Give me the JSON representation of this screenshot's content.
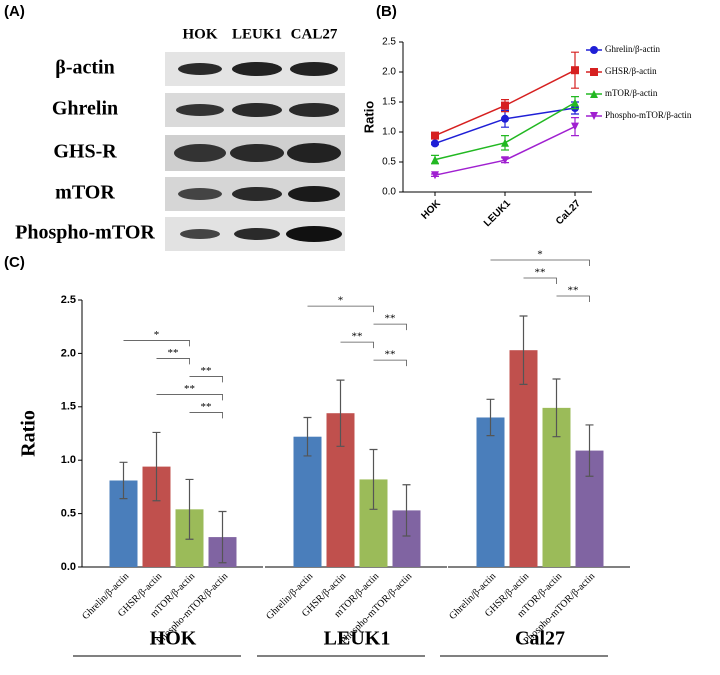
{
  "panel_a": {
    "label": "(A)",
    "columns": [
      "HOK",
      "LEUK1",
      "CAL27"
    ],
    "rows": [
      "β-actin",
      "Ghrelin",
      "GHS-R",
      "mTOR",
      "Phospho-mTOR"
    ]
  },
  "chart_data": [
    {
      "type": "line",
      "label": "(B)",
      "ylabel": "Ratio",
      "categories": [
        "HOK",
        "LEUK1",
        "CaL27"
      ],
      "ylim": [
        0,
        2.5
      ],
      "yticks": [
        {
          "value": 0,
          "label": "0.0"
        },
        0.5,
        {
          "value": 1,
          "label": "1.0"
        },
        1.5,
        {
          "value": 2,
          "label": "2.0"
        },
        2.5
      ],
      "series": [
        {
          "name": "Ghrelin/β-actin",
          "color": "#1f1fd6",
          "marker": "circle",
          "values": [
            0.81,
            1.22,
            1.4
          ],
          "errors": [
            0.02,
            0.14,
            0.1
          ]
        },
        {
          "name": "GHSR/β-actin",
          "color": "#d62020",
          "marker": "square",
          "values": [
            0.94,
            1.44,
            2.03
          ],
          "errors": [
            0.04,
            0.1,
            0.3
          ]
        },
        {
          "name": "mTOR/β-actin",
          "color": "#22b822",
          "marker": "triangle-up",
          "values": [
            0.54,
            0.82,
            1.49
          ],
          "errors": [
            0.07,
            0.12,
            0.1
          ]
        },
        {
          "name": "Phospho-mTOR/β-actin",
          "color": "#a020d0",
          "marker": "triangle-down",
          "values": [
            0.28,
            0.53,
            1.09
          ],
          "errors": [
            0.02,
            0.04,
            0.15
          ]
        }
      ]
    },
    {
      "type": "bar",
      "label": "(C)",
      "ylabel": "Ratio",
      "categories": [
        "HOK",
        "LEUK1",
        "Cal27"
      ],
      "ylim": [
        0,
        2.5
      ],
      "yticks": [
        {
          "value": 0,
          "label": "0.0"
        },
        0.5,
        {
          "value": 1,
          "label": "1.0"
        },
        1.5,
        {
          "value": 2,
          "label": "2.0"
        },
        2.5
      ],
      "series": [
        {
          "name": "Ghrelin/β-actin",
          "color": "#4a7ebb",
          "values": [
            0.81,
            1.22,
            1.4
          ],
          "errors": [
            0.17,
            0.18,
            0.17
          ]
        },
        {
          "name": "GHSR/β-actin",
          "color": "#c0504d",
          "values": [
            0.94,
            1.44,
            2.03
          ],
          "errors": [
            0.32,
            0.31,
            0.32
          ]
        },
        {
          "name": "mTOR/β-actin",
          "color": "#9bbb59",
          "values": [
            0.54,
            0.82,
            1.49
          ],
          "errors": [
            0.28,
            0.28,
            0.27
          ]
        },
        {
          "name": "Phospho-mTOR/β-actin",
          "color": "#8064a2",
          "values": [
            0.28,
            0.53,
            1.09
          ],
          "errors": [
            0.24,
            0.24,
            0.24
          ]
        }
      ],
      "annotations": [
        [
          {
            "label": "*",
            "from": 0,
            "to": 2
          },
          {
            "label": "**",
            "from": 1,
            "to": 2
          },
          {
            "label": "**",
            "from": 2,
            "to": 3
          },
          {
            "label": "**",
            "from": 1,
            "to": 3
          },
          {
            "label": "**",
            "from": 2,
            "to": 3
          }
        ],
        [
          {
            "label": "*",
            "from": 0,
            "to": 2
          },
          {
            "label": "**",
            "from": 2,
            "to": 3
          },
          {
            "label": "**",
            "from": 1,
            "to": 2
          },
          {
            "label": "**",
            "from": 2,
            "to": 3
          }
        ],
        [
          {
            "label": "*",
            "from": 0,
            "to": 3
          },
          {
            "label": "**",
            "from": 1,
            "to": 2
          },
          {
            "label": "**",
            "from": 2,
            "to": 3
          }
        ]
      ]
    }
  ]
}
